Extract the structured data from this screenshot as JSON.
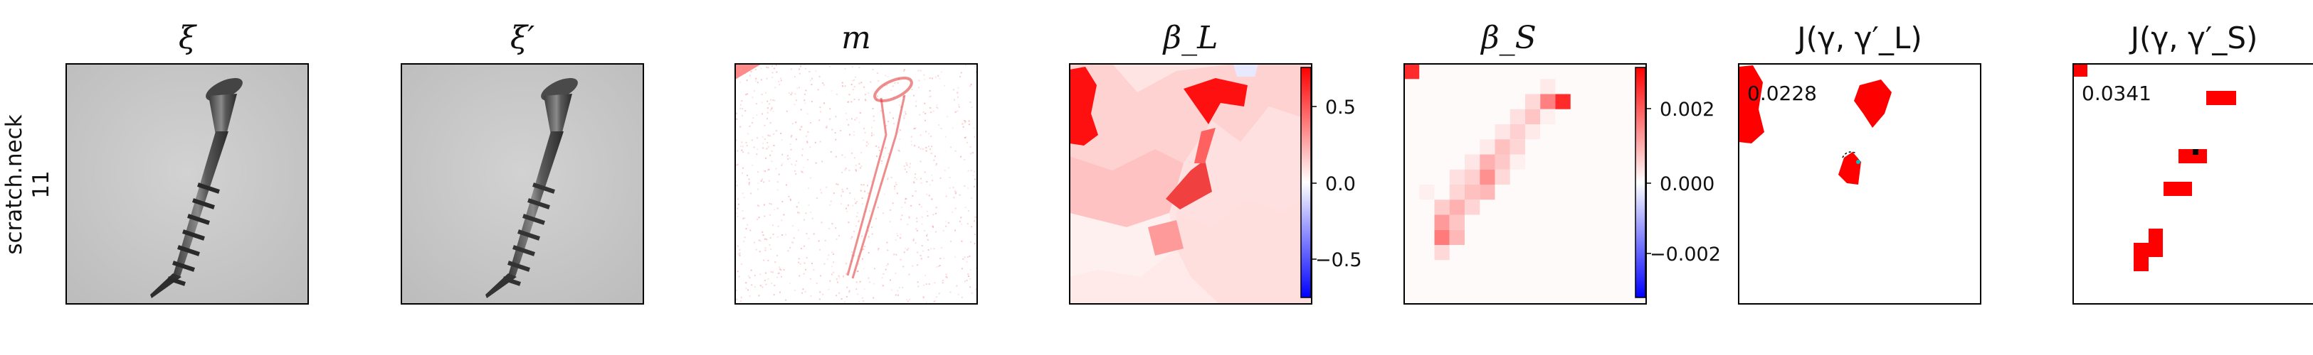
{
  "row_label": {
    "line1": "scratch.neck",
    "line2": "11"
  },
  "panels": [
    {
      "title": "ξ",
      "kind": "image"
    },
    {
      "title": "ξ′",
      "kind": "image"
    },
    {
      "title": "m",
      "kind": "mask"
    },
    {
      "title": "β_L",
      "kind": "heat_large"
    },
    {
      "title": "β_S",
      "kind": "heat_small"
    },
    {
      "title": "J(γ, γ′_L)",
      "kind": "binary_large"
    },
    {
      "title": "J(γ, γ′_S)",
      "kind": "binary_small"
    }
  ],
  "colorbars": [
    {
      "panel": "β_L",
      "ticks": [
        "0.5",
        "0.0",
        "−0.5"
      ]
    },
    {
      "panel": "β_S",
      "ticks": [
        "0.002",
        "0.000",
        "−0.002"
      ]
    }
  ],
  "scores": {
    "large": "0.0228",
    "small": "0.0341"
  },
  "colors": {
    "positive": "#ff0000",
    "zero": "#ffffff",
    "negative": "#0000ff",
    "frame": "#000000",
    "photo_bg": "#c8c8c8"
  }
}
